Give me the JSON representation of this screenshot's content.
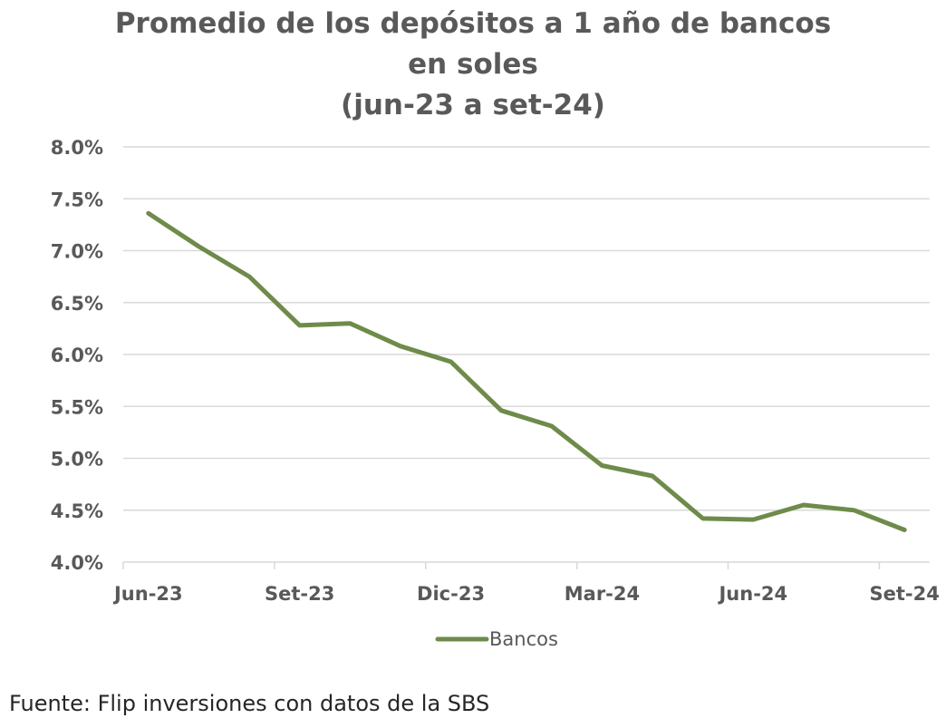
{
  "chart_data": {
    "type": "line",
    "title_lines": [
      "Promedio de los depósitos a 1 año de bancos",
      "en soles",
      "(jun-23 a set-24)"
    ],
    "x": [
      "Jun-23",
      "Jul-23",
      "Ago-23",
      "Set-23",
      "Oct-23",
      "Nov-23",
      "Dic-23",
      "Ene-24",
      "Feb-24",
      "Mar-24",
      "Abr-24",
      "May-24",
      "Jun-24",
      "Jul-24",
      "Ago-24",
      "Set-24"
    ],
    "x_tick_labels": [
      "Jun-23",
      "Set-23",
      "Dic-23",
      "Mar-24",
      "Jun-24",
      "Set-24"
    ],
    "y_tick_labels": [
      "8.0%",
      "7.5%",
      "7.0%",
      "6.5%",
      "6.0%",
      "5.5%",
      "5.0%",
      "4.5%",
      "4.0%"
    ],
    "ylim": [
      4.0,
      8.0
    ],
    "y_unit": "%",
    "grid": true,
    "legend_position": "bottom-center",
    "series": [
      {
        "name": "Bancos",
        "color": "#6e8b4a",
        "values": [
          7.36,
          7.04,
          6.75,
          6.28,
          6.3,
          6.08,
          5.93,
          5.46,
          5.31,
          4.93,
          4.83,
          4.42,
          4.41,
          4.55,
          4.5,
          4.31
        ]
      }
    ],
    "xlabel": "",
    "ylabel": ""
  },
  "source_note": "Fuente: Flip inversiones con datos de la SBS"
}
